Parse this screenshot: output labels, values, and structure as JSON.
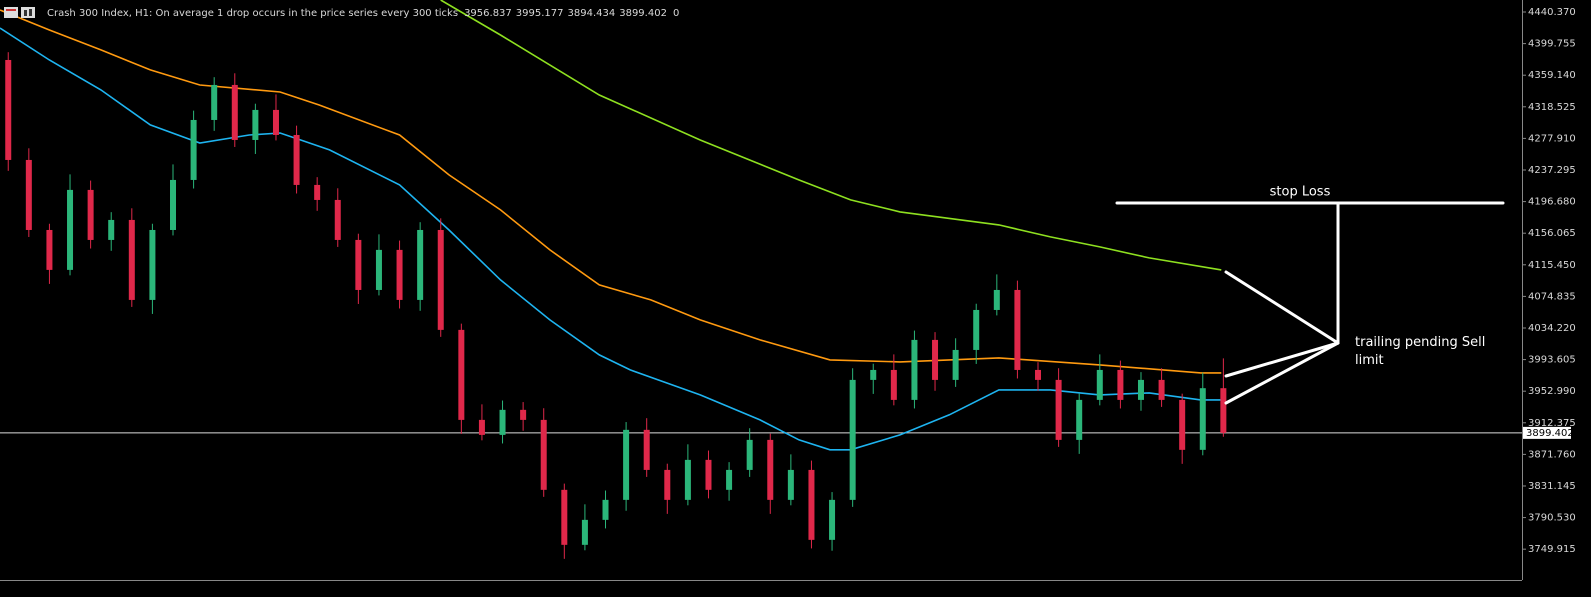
{
  "chart_data": {
    "type": "candlestick",
    "title": "Crash 300 Index, H1:  On average 1 drop occurs in the price series every 300 ticks",
    "header_volume": 0,
    "up_color": "#2bb67a",
    "down_color": "#e0284a",
    "xlim": [
      -0.4,
      73.5
    ],
    "ylim": [
      3710.3,
      4455.8
    ],
    "yticks": [
      {
        "value": 4440.37,
        "label": "4440.370"
      },
      {
        "value": 4399.755,
        "label": "4399.755"
      },
      {
        "value": 4359.14,
        "label": "4359.140"
      },
      {
        "value": 4318.525,
        "label": "4318.525"
      },
      {
        "value": 4277.91,
        "label": "4277.910"
      },
      {
        "value": 4237.295,
        "label": "4237.295"
      },
      {
        "value": 4196.68,
        "label": "4196.680"
      },
      {
        "value": 4156.065,
        "label": "4156.065"
      },
      {
        "value": 4115.45,
        "label": "4115.450"
      },
      {
        "value": 4074.835,
        "label": "4074.835"
      },
      {
        "value": 4034.22,
        "label": "4034.220"
      },
      {
        "value": 3993.605,
        "label": "3993.605"
      },
      {
        "value": 3952.99,
        "label": "3952.990"
      },
      {
        "value": 3912.375,
        "label": "3912.375"
      },
      {
        "value": 3871.76,
        "label": "3871.760"
      },
      {
        "value": 3831.145,
        "label": "3831.145"
      },
      {
        "value": 3790.53,
        "label": "3790.530"
      },
      {
        "value": 3749.915,
        "label": "3749.915"
      }
    ],
    "grid": false,
    "price_line": 3899.402,
    "open": [
      4378.7,
      4250.2,
      4160.2,
      4108.9,
      4211.7,
      4147.4,
      4173.1,
      4070.3,
      4160.2,
      4224.5,
      4301.6,
      4346.6,
      4275.9,
      4314.5,
      4282.3,
      4218.1,
      4198.8,
      4147.4,
      4083.1,
      4134.6,
      4070.3,
      4160.2,
      4031.8,
      3916.1,
      3896.8,
      3929.0,
      3916.1,
      3826.2,
      3755.5,
      3787.6,
      3813.3,
      3903.3,
      3851.8,
      3813.3,
      3864.7,
      3826.2,
      3851.8,
      3890.4,
      3813.3,
      3851.8,
      3761.9,
      3813.3,
      3967.5,
      3980.3,
      3941.8,
      4018.9,
      3967.5,
      4006.0,
      4057.4,
      4083.1,
      3980.3,
      3967.5,
      3890.4,
      3941.8,
      3980.3,
      3941.8,
      3967.5,
      3941.8,
      3877.6,
      3956.837
    ],
    "high": [
      4388.7,
      4265.2,
      4168.2,
      4231.7,
      4223.7,
      4183.1,
      4188.1,
      4168.2,
      4244.5,
      4313.6,
      4356.6,
      4361.6,
      4322.5,
      4334.5,
      4294.3,
      4228.1,
      4213.8,
      4155.4,
      4154.6,
      4146.6,
      4170.2,
      4175.2,
      4039.8,
      3936.1,
      3941.0,
      3939.0,
      3931.1,
      3834.2,
      3807.6,
      3825.3,
      3913.3,
      3918.3,
      3859.8,
      3884.7,
      3876.7,
      3861.8,
      3905.4,
      3898.4,
      3871.8,
      3863.8,
      3823.3,
      3982.5,
      3988.3,
      4000.3,
      4030.9,
      4028.9,
      4021.0,
      4065.4,
      4103.1,
      4095.1,
      3990.3,
      3982.5,
      3949.8,
      4000.3,
      3992.3,
      3977.5,
      3982.5,
      3949.8,
      3976.8,
      3995.177
    ],
    "low": [
      4236.2,
      4151.2,
      4090.9,
      4101.9,
      4136.4,
      4133.4,
      4061.3,
      4052.3,
      4153.2,
      4213.5,
      4287.6,
      4266.9,
      4257.9,
      4275.3,
      4207.1,
      4184.8,
      4138.4,
      4065.1,
      4076.1,
      4059.3,
      4056.3,
      4022.8,
      3898.1,
      3889.8,
      3885.8,
      3902.1,
      3817.2,
      3737.5,
      3748.5,
      3776.6,
      3799.3,
      3842.8,
      3795.3,
      3806.3,
      3815.2,
      3812.2,
      3842.8,
      3795.3,
      3806.3,
      3750.9,
      3747.9,
      3804.3,
      3949.5,
      3934.8,
      3930.8,
      3953.5,
      3958.5,
      3988.0,
      4050.4,
      3969.3,
      3953.5,
      3881.4,
      3872.4,
      3934.8,
      3930.8,
      3927.8,
      3932.8,
      3859.6,
      3870.6,
      3894.434
    ],
    "close": [
      4250.2,
      4160.2,
      4108.9,
      4211.7,
      4147.4,
      4173.1,
      4070.3,
      4160.2,
      4224.5,
      4301.6,
      4346.6,
      4275.9,
      4314.5,
      4282.3,
      4218.1,
      4198.8,
      4147.4,
      4083.1,
      4134.6,
      4070.3,
      4160.2,
      4031.8,
      3916.1,
      3896.8,
      3929.0,
      3916.1,
      3826.2,
      3755.5,
      3787.6,
      3813.3,
      3903.3,
      3851.8,
      3813.3,
      3864.7,
      3826.2,
      3851.8,
      3890.4,
      3813.3,
      3851.8,
      3761.9,
      3813.3,
      3967.5,
      3980.3,
      3941.8,
      4018.9,
      3967.5,
      4006.0,
      4057.4,
      4083.1,
      3980.3,
      3967.5,
      3890.4,
      3941.8,
      3980.3,
      3941.8,
      3967.5,
      3941.8,
      3877.6,
      3956.837,
      3899.402
    ],
    "series": [
      {
        "color": "#1eb4f0",
        "x": [
          -0.4,
          2.0,
          4.5,
          6.9,
          9.3,
          11.7,
          13.2,
          14.2,
          15.6,
          19.0,
          21.4,
          23.9,
          26.3,
          28.7,
          30.2,
          33.6,
          36.5,
          38.4,
          39.9,
          40.9,
          43.3,
          45.7,
          48.1,
          50.6,
          53.0,
          55.4,
          57.9,
          58.9
        ],
        "values": [
          4419.8,
          4378.7,
          4340.2,
          4295.2,
          4272.0,
          4282.3,
          4284.9,
          4275.9,
          4263.1,
          4218.1,
          4160.2,
          4096.0,
          4044.6,
          3999.6,
          3980.3,
          3948.2,
          3916.1,
          3890.4,
          3877.6,
          3877.6,
          3896.8,
          3922.6,
          3954.7,
          3954.7,
          3948.2,
          3950.8,
          3941.8,
          3941.8
        ]
      },
      {
        "color": "#ff9a10",
        "x": [
          -0.4,
          2.0,
          4.5,
          6.9,
          9.3,
          13.2,
          15.1,
          19.0,
          21.4,
          23.9,
          26.3,
          28.7,
          31.2,
          33.6,
          36.5,
          39.9,
          43.3,
          48.1,
          53.0,
          57.9,
          58.9
        ],
        "values": [
          4443.0,
          4417.3,
          4391.6,
          4365.9,
          4346.6,
          4337.6,
          4320.9,
          4282.3,
          4231.0,
          4186.0,
          4134.6,
          4089.6,
          4070.3,
          4044.6,
          4018.9,
          3993.2,
          3990.6,
          3995.8,
          3986.8,
          3976.5,
          3976.5
        ]
      },
      {
        "color": "#8ee020",
        "x": [
          21.0,
          23.9,
          28.7,
          33.6,
          38.4,
          40.9,
          43.3,
          48.1,
          50.6,
          53.0,
          55.4,
          58.9
        ],
        "values": [
          4455.8,
          4410.8,
          4333.7,
          4275.9,
          4224.5,
          4198.8,
          4183.4,
          4166.7,
          4151.3,
          4138.4,
          4124.3,
          4108.9
        ]
      }
    ],
    "annotations": [
      "stop Loss",
      "trailing pending Sell limit"
    ]
  }
}
